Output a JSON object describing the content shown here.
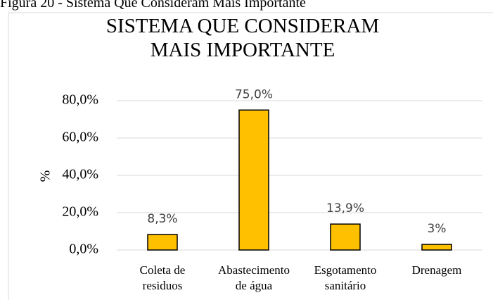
{
  "caption": "Figura 20 - Sistema Que Consideram Mais Importante",
  "chart_data": {
    "type": "bar",
    "title": "SISTEMA QUE CONSIDERAM MAIS IMPORTANTE",
    "ylabel": "%",
    "categories": [
      [
        "Coleta de",
        "residuos"
      ],
      [
        "Abastecimento",
        "de água"
      ],
      [
        "Esgotamento",
        "sanitário"
      ],
      [
        "Drenagem"
      ]
    ],
    "values": [
      8.3,
      75.0,
      13.9,
      3
    ],
    "value_labels": [
      "8,3%",
      "75,0%",
      "13,9%",
      "3%"
    ],
    "color": "#ffc000",
    "ylim": [
      0,
      80
    ],
    "yticks": [
      {
        "value": 0,
        "label": "0,0%"
      },
      {
        "value": 20,
        "label": "20,0%"
      },
      {
        "value": 40,
        "label": "40,0%"
      },
      {
        "value": 60,
        "label": "60,0%"
      },
      {
        "value": 80,
        "label": "80,0%"
      }
    ],
    "grid": true
  }
}
